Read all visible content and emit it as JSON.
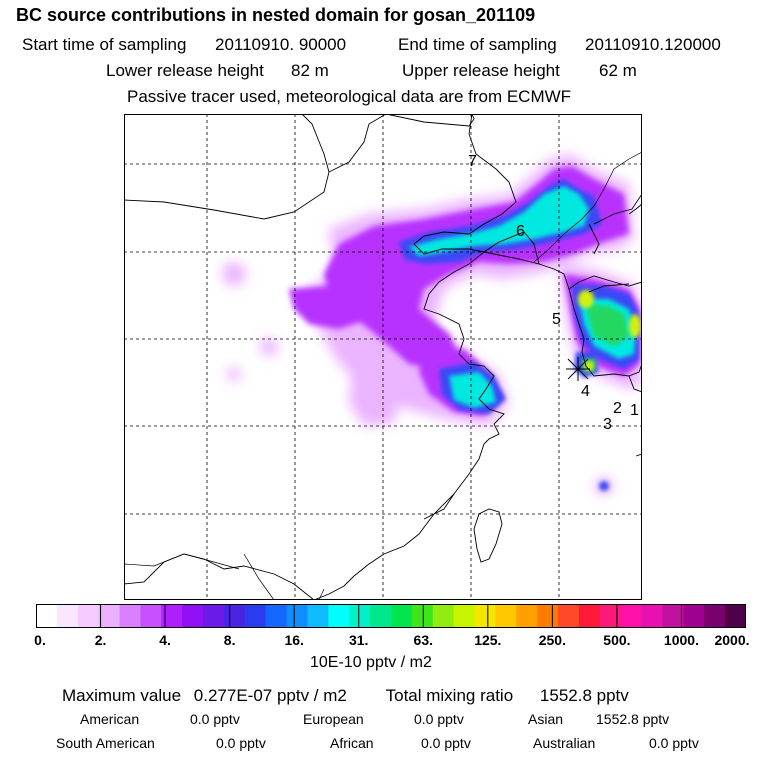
{
  "title": "BC  source contributions in nested domain for gosan_201109",
  "header": {
    "start_label": "Start time of sampling",
    "start_value": "20110910. 90000",
    "end_label": "End time of sampling",
    "end_value": "20110910.120000",
    "lower_label": "Lower release height",
    "lower_value": "82 m",
    "upper_label": "Upper release height",
    "upper_value": "62 m",
    "note": "Passive tracer used, meteorological data are from ECMWF"
  },
  "chart_data": {
    "type": "heatmap",
    "title": "BC  source contributions in nested domain for gosan_201109",
    "colorbar": {
      "unit_label": "10E-10 pptv / m2",
      "tick_labels": [
        "0.",
        "2.",
        "4.",
        "8.",
        "16.",
        "31.",
        "63.",
        "125.",
        "250.",
        "500.",
        "1000.",
        "2000."
      ],
      "colors": [
        "#ffffff",
        "#fbe6ff",
        "#f5ccff",
        "#ebb0ff",
        "#d980ff",
        "#c850ff",
        "#b020ff",
        "#8f10f5",
        "#6c1ae8",
        "#4a24e0",
        "#2a3cf0",
        "#1466ff",
        "#0f8fff",
        "#0fbdff",
        "#00ffff",
        "#00f0c8",
        "#00e68a",
        "#00e650",
        "#3ee618",
        "#8fee10",
        "#c8f500",
        "#f5e600",
        "#ffc800",
        "#ffa000",
        "#ff7a00",
        "#ff4a2a",
        "#ff1a3a",
        "#ff1a7a",
        "#ff10a8",
        "#e810b0",
        "#c010a0",
        "#a00090",
        "#7a0070",
        "#500048"
      ]
    },
    "grid": true,
    "trajectory_labels": [
      {
        "label": "7",
        "pos": "north-central"
      },
      {
        "label": "6",
        "pos": "Bohai Sea coast"
      },
      {
        "label": "5",
        "pos": "Yellow Sea"
      },
      {
        "label": "4",
        "pos": "near receptor"
      },
      {
        "label": "3",
        "pos": "south of receptor"
      },
      {
        "label": "2",
        "pos": "south of receptor"
      },
      {
        "label": "1",
        "pos": "east edge"
      }
    ],
    "receptor": "gosan"
  },
  "summary": {
    "max_label": "Maximum value",
    "max_value": "0.277E-07 pptv / m2",
    "total_label": "Total mixing ratio",
    "total_value": "1552.8 pptv"
  },
  "regions": [
    {
      "name": "American",
      "value": "0.0 pptv"
    },
    {
      "name": "European",
      "value": "0.0 pptv"
    },
    {
      "name": "Asian",
      "value": "1552.8 pptv"
    },
    {
      "name": "South American",
      "value": "0.0 pptv"
    },
    {
      "name": "African",
      "value": "0.0 pptv"
    },
    {
      "name": "Australian",
      "value": "0.0 pptv"
    }
  ]
}
